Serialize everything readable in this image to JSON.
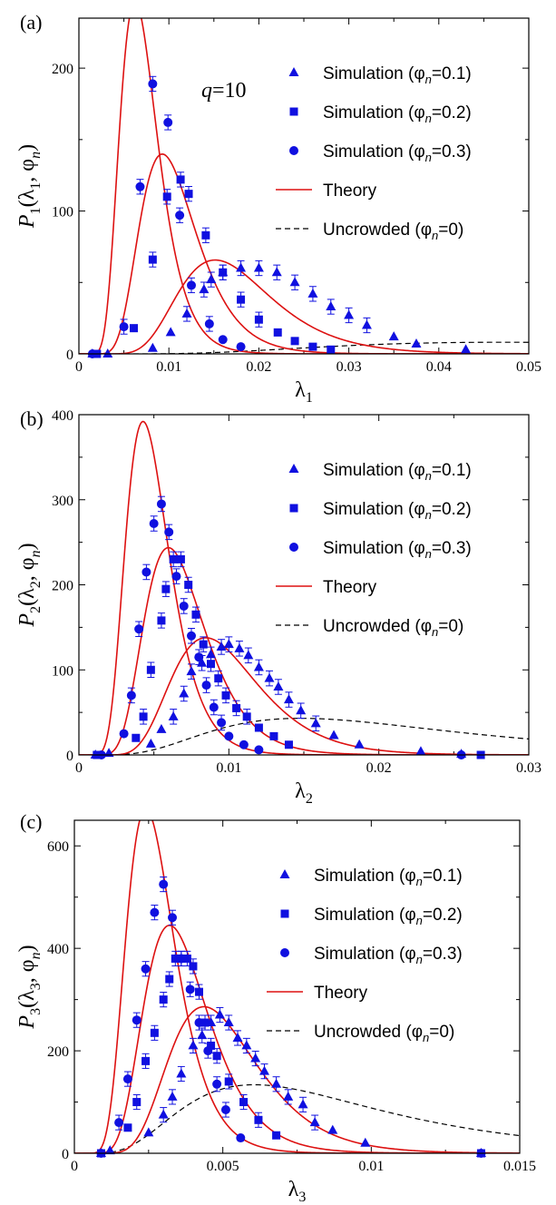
{
  "colors": {
    "simulation": "#1010e0",
    "theory": "#dd1111",
    "uncrowded": "#000000",
    "axes": "#000000"
  },
  "chart_data": [
    {
      "type": "scatter",
      "panel_label": "(a)",
      "annotation": "q=10",
      "xlabel": "λ1",
      "ylabel": "P1(λ1, φn)",
      "xlim": [
        0,
        0.05
      ],
      "ylim": [
        0,
        235
      ],
      "xticks": [
        0,
        0.01,
        0.02,
        0.03,
        0.04,
        0.05
      ],
      "xtick_labels": [
        "0",
        "0.01",
        "0.02",
        "0.03",
        "0.04",
        "0.05"
      ],
      "yticks": [
        0,
        100,
        200
      ],
      "ytick_labels": [
        "0",
        "100",
        "200"
      ],
      "grid": false,
      "legend_position": "top-right",
      "legend": [
        {
          "label": "Simulation (φn=0.1)",
          "text": "Simulation (",
          "sym": "φ",
          "sub": "n",
          "tail": "=0.1)",
          "marker": "triangle"
        },
        {
          "label": "Simulation (φn=0.2)",
          "text": "Simulation (",
          "sym": "φ",
          "sub": "n",
          "tail": "=0.2)",
          "marker": "square"
        },
        {
          "label": "Simulation (φn=0.3)",
          "text": "Simulation (",
          "sym": "φ",
          "sub": "n",
          "tail": "=0.3)",
          "marker": "circle"
        },
        {
          "label": "Theory",
          "text": "Theory",
          "marker": "line"
        },
        {
          "label": "Uncrowded (φn=0)",
          "text": "Uncrowded (",
          "sym": "φ",
          "sub": "n",
          "tail": "=0)",
          "marker": "dashed"
        }
      ],
      "series": [
        {
          "name": "Simulation (φn=0.1)",
          "marker": "triangle",
          "x": [
            0.0015,
            0.0032,
            0.0082,
            0.0102,
            0.012,
            0.0139,
            0.0147,
            0.016,
            0.018,
            0.02,
            0.022,
            0.024,
            0.026,
            0.028,
            0.03,
            0.032,
            0.035,
            0.0375,
            0.043
          ],
          "y": [
            0,
            0,
            4,
            15,
            28,
            45,
            52,
            57,
            60,
            60,
            57,
            50,
            42,
            33,
            27,
            20,
            12,
            7,
            3
          ]
        },
        {
          "name": "Simulation (φn=0.2)",
          "marker": "square",
          "x": [
            0.002,
            0.0061,
            0.0082,
            0.0098,
            0.0113,
            0.0122,
            0.0141,
            0.016,
            0.018,
            0.02,
            0.0221,
            0.024,
            0.026,
            0.028
          ],
          "y": [
            0,
            18,
            66,
            110,
            122,
            112,
            83,
            57,
            38,
            24,
            15,
            9,
            5,
            3
          ]
        },
        {
          "name": "Simulation (φn=0.3)",
          "marker": "circle",
          "x": [
            0.0015,
            0.005,
            0.0068,
            0.0082,
            0.0099,
            0.0112,
            0.0125,
            0.0145,
            0.016,
            0.018
          ],
          "y": [
            0,
            19,
            117,
            189,
            162,
            97,
            48,
            21,
            10,
            5
          ]
        }
      ],
      "theory": [
        {
          "peak": 0.007,
          "height": 233
        },
        {
          "peak": 0.0104,
          "height": 132
        },
        {
          "peak": 0.017,
          "height": 62
        }
      ],
      "uncrowded": {
        "peak": 0.064,
        "height": 7
      }
    },
    {
      "type": "scatter",
      "panel_label": "(b)",
      "annotation": "",
      "xlabel": "λ2",
      "ylabel": "P2(λ2, φn)",
      "xlim": [
        0,
        0.03
      ],
      "ylim": [
        0,
        400
      ],
      "xticks": [
        0,
        0.01,
        0.02,
        0.03
      ],
      "xtick_labels": [
        "0",
        "0.01",
        "0.02",
        "0.03"
      ],
      "yticks": [
        0,
        100,
        200,
        300,
        400
      ],
      "ytick_labels": [
        "0",
        "100",
        "200",
        "300",
        "400"
      ],
      "grid": false,
      "legend_position": "top-right",
      "legend": [
        {
          "label": "Simulation (φn=0.1)",
          "text": "Simulation (",
          "sym": "φ",
          "sub": "n",
          "tail": "=0.1)",
          "marker": "triangle"
        },
        {
          "label": "Simulation (φn=0.2)",
          "text": "Simulation (",
          "sym": "φ",
          "sub": "n",
          "tail": "=0.2)",
          "marker": "square"
        },
        {
          "label": "Simulation (φn=0.3)",
          "text": "Simulation (",
          "sym": "φ",
          "sub": "n",
          "tail": "=0.3)",
          "marker": "circle"
        },
        {
          "label": "Theory",
          "text": "Theory",
          "marker": "line"
        },
        {
          "label": "Uncrowded (φn=0)",
          "text": "Uncrowded (",
          "sym": "φ",
          "sub": "n",
          "tail": "=0)",
          "marker": "dashed"
        }
      ],
      "series": [
        {
          "name": "Simulation (φn=0.1)",
          "marker": "triangle",
          "x": [
            0.0011,
            0.002,
            0.0048,
            0.0055,
            0.0063,
            0.007,
            0.0075,
            0.0082,
            0.0088,
            0.0095,
            0.01,
            0.0107,
            0.0113,
            0.012,
            0.0127,
            0.0133,
            0.014,
            0.0148,
            0.0158,
            0.017,
            0.0187,
            0.0228,
            0.0255
          ],
          "y": [
            0,
            2,
            13,
            30,
            45,
            72,
            98,
            108,
            118,
            127,
            130,
            125,
            117,
            103,
            90,
            80,
            65,
            52,
            37,
            23,
            12,
            4,
            1
          ]
        },
        {
          "name": "Simulation (φn=0.2)",
          "marker": "square",
          "x": [
            0.0012,
            0.0038,
            0.0043,
            0.0048,
            0.0055,
            0.0058,
            0.0063,
            0.0068,
            0.0073,
            0.0078,
            0.0083,
            0.0088,
            0.0093,
            0.0098,
            0.0105,
            0.0112,
            0.012,
            0.013,
            0.014,
            0.0268
          ],
          "y": [
            0,
            20,
            45,
            100,
            158,
            195,
            230,
            230,
            200,
            165,
            130,
            107,
            90,
            70,
            55,
            45,
            32,
            22,
            12,
            0
          ]
        },
        {
          "name": "Simulation (φn=0.3)",
          "marker": "circle",
          "x": [
            0.0015,
            0.003,
            0.0035,
            0.004,
            0.0045,
            0.005,
            0.0055,
            0.006,
            0.0065,
            0.007,
            0.0075,
            0.008,
            0.0085,
            0.009,
            0.0095,
            0.01,
            0.011,
            0.012,
            0.0255
          ],
          "y": [
            0,
            25,
            70,
            148,
            215,
            272,
            295,
            262,
            210,
            175,
            140,
            115,
            82,
            56,
            38,
            22,
            12,
            6,
            0
          ]
        }
      ],
      "theory": [
        {
          "peak": 0.0048,
          "height": 370
        },
        {
          "peak": 0.0067,
          "height": 230
        },
        {
          "peak": 0.0095,
          "height": 130
        }
      ],
      "uncrowded": {
        "peak": 0.02,
        "height": 37
      }
    },
    {
      "type": "scatter",
      "panel_label": "(c)",
      "annotation": "",
      "xlabel": "λ3",
      "ylabel": "P3(λ3, φn)",
      "xlim": [
        0,
        0.015
      ],
      "ylim": [
        0,
        650
      ],
      "xticks": [
        0,
        0.005,
        0.01,
        0.015
      ],
      "xtick_labels": [
        "0",
        "0.005",
        "0.01",
        "0.015"
      ],
      "yticks": [
        0,
        200,
        400,
        600
      ],
      "ytick_labels": [
        "0",
        "200",
        "400",
        "600"
      ],
      "grid": false,
      "legend_position": "top-right",
      "legend": [
        {
          "label": "Simulation (φn=0.1)",
          "text": "Simulation (",
          "sym": "φ",
          "sub": "n",
          "tail": "=0.1)",
          "marker": "triangle"
        },
        {
          "label": "Simulation (φn=0.2)",
          "text": "Simulation (",
          "sym": "φ",
          "sub": "n",
          "tail": "=0.2)",
          "marker": "square"
        },
        {
          "label": "Simulation (φn=0.3)",
          "text": "Simulation (",
          "sym": "φ",
          "sub": "n",
          "tail": "=0.3)",
          "marker": "circle"
        },
        {
          "label": "Theory",
          "text": "Theory",
          "marker": "line"
        },
        {
          "label": "Uncrowded (φn=0)",
          "text": "Uncrowded (",
          "sym": "φ",
          "sub": "n",
          "tail": "=0)",
          "marker": "dashed"
        }
      ],
      "series": [
        {
          "name": "Simulation (φn=0.1)",
          "marker": "triangle",
          "x": [
            0.0009,
            0.0012,
            0.0025,
            0.003,
            0.0033,
            0.0036,
            0.004,
            0.0043,
            0.0046,
            0.0049,
            0.0052,
            0.0055,
            0.0058,
            0.0061,
            0.0064,
            0.0068,
            0.0072,
            0.0077,
            0.0081,
            0.0087,
            0.0098,
            0.0137
          ],
          "y": [
            0,
            5,
            40,
            75,
            110,
            155,
            210,
            230,
            255,
            270,
            255,
            225,
            210,
            185,
            160,
            135,
            110,
            95,
            60,
            45,
            20,
            0
          ]
        },
        {
          "name": "Simulation (φn=0.2)",
          "marker": "square",
          "x": [
            0.0009,
            0.0018,
            0.0021,
            0.0024,
            0.0027,
            0.003,
            0.0032,
            0.0034,
            0.0036,
            0.0038,
            0.004,
            0.0042,
            0.0044,
            0.0046,
            0.0048,
            0.0052,
            0.0057,
            0.0062,
            0.0068,
            0.0137
          ],
          "y": [
            0,
            50,
            100,
            180,
            235,
            300,
            340,
            380,
            380,
            380,
            365,
            315,
            255,
            210,
            190,
            140,
            100,
            65,
            35,
            0
          ]
        },
        {
          "name": "Simulation (φn=0.3)",
          "marker": "circle",
          "x": [
            0.0009,
            0.0015,
            0.0018,
            0.0021,
            0.0024,
            0.0027,
            0.003,
            0.0033,
            0.0036,
            0.0039,
            0.0042,
            0.0045,
            0.0048,
            0.0051,
            0.0056,
            0.0137
          ],
          "y": [
            0,
            60,
            145,
            260,
            360,
            470,
            525,
            460,
            380,
            320,
            255,
            200,
            135,
            85,
            30,
            0
          ]
        }
      ],
      "theory": [
        {
          "peak": 0.0027,
          "height": 635
        },
        {
          "peak": 0.0036,
          "height": 420
        },
        {
          "peak": 0.0049,
          "height": 270
        }
      ],
      "uncrowded": {
        "peak": 0.0082,
        "height": 115
      }
    }
  ]
}
